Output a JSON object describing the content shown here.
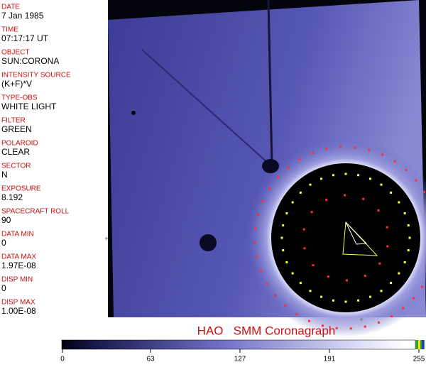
{
  "header": {
    "fields": [
      {
        "label": "DATE",
        "value": "7 Jan 1985"
      },
      {
        "label": "TIME",
        "value": "07:17:17 UT"
      },
      {
        "label": "OBJECT",
        "value": "SUN:CORONA"
      },
      {
        "label": "INTENSITY SOURCE",
        "value": "(K+F)*V"
      },
      {
        "label": "TYPE-OBS",
        "value": "WHITE LIGHT"
      },
      {
        "label": "FILTER",
        "value": "GREEN"
      },
      {
        "label": "POLAROID",
        "value": "CLEAR"
      },
      {
        "label": "SECTOR",
        "value": "N"
      },
      {
        "label": "EXPOSURE",
        "value": "8.192"
      },
      {
        "label": "SPACECRAFT ROLL",
        "value": "90"
      },
      {
        "label": "DATA MIN",
        "value": "0"
      },
      {
        "label": "DATA MAX",
        "value": "1.97E-08"
      },
      {
        "label": "DISP MIN",
        "value": "0"
      },
      {
        "label": "DISP MAX",
        "value": "1.00E-08"
      }
    ]
  },
  "title": "HAO   SMM Coronagraph",
  "colorbar": {
    "ticks": [
      0,
      63,
      127,
      191,
      255
    ]
  }
}
